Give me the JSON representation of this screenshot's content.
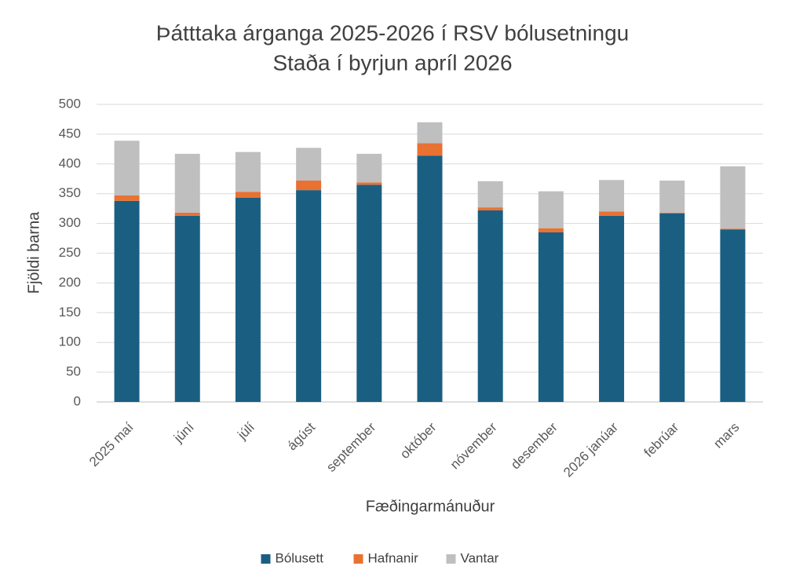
{
  "chart_data": {
    "type": "stacked_bar",
    "title": "Þátttaka árganga 2025-2026 í RSV bólusetningu",
    "subtitle": "Staða í byrjun apríl 2026",
    "x_label": "Fæðingarmánuður",
    "y_label": "Fjöldi barna",
    "categories": [
      "2025 maí",
      "júní",
      "júlí",
      "ágúst",
      "september",
      "október",
      "nóvember",
      "desember",
      "2026 janúar",
      "febrúar",
      "mars"
    ],
    "series": [
      {
        "name": "Bólusett",
        "color": "#1a5f82",
        "values": [
          338,
          313,
          343,
          356,
          365,
          414,
          322,
          285,
          313,
          317,
          290
        ]
      },
      {
        "name": "Hafnanir",
        "color": "#e97132",
        "values": [
          9,
          5,
          10,
          16,
          4,
          21,
          5,
          7,
          7,
          1,
          1
        ]
      },
      {
        "name": "Vantar",
        "color": "#bfbfbf",
        "values": [
          92,
          99,
          67,
          55,
          48,
          35,
          44,
          62,
          53,
          54,
          105
        ]
      }
    ],
    "ylim": [
      0,
      500
    ],
    "yticks": [
      0,
      50,
      100,
      150,
      200,
      250,
      300,
      350,
      400,
      450,
      500
    ],
    "grid": true,
    "legend": "bottom"
  }
}
